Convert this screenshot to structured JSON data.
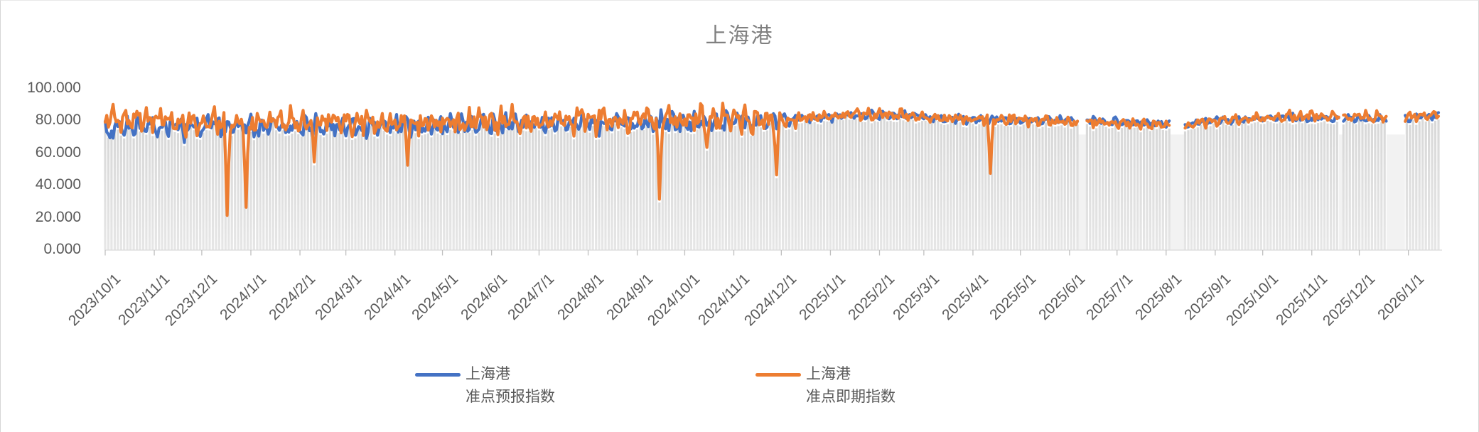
{
  "title": "上海港",
  "legend": {
    "items": [
      {
        "id": "forecast",
        "line1": "上海港",
        "line2": "准点预报指数",
        "color": "#4472C4"
      },
      {
        "id": "spot",
        "line1": "上海港",
        "line2": "准点即期指数",
        "color": "#ED7D31"
      }
    ]
  },
  "y_axis": {
    "tick_labels_top_to_bottom": [
      "100.000",
      "80.000",
      "60.000",
      "40.000",
      "20.000",
      "0.000"
    ]
  },
  "x_axis": {
    "tick_labels": [
      "2023/10/1",
      "2023/11/1",
      "2023/12/1",
      "2024/1/1",
      "2024/2/1",
      "2024/3/1",
      "2024/4/1",
      "2024/5/1",
      "2024/6/1",
      "2024/7/1",
      "2024/8/1",
      "2024/9/1",
      "2024/10/1",
      "2024/11/1",
      "2024/12/1",
      "2025/1/1",
      "2025/2/1",
      "2025/3/1",
      "2025/4/1",
      "2025/5/1",
      "2025/6/1",
      "2025/7/1",
      "2025/8/1",
      "2025/9/1",
      "2025/10/1",
      "2025/11/1",
      "2025/12/1",
      "2026/1/1"
    ]
  },
  "chart_data": {
    "type": "line",
    "title": "上海港",
    "xlabel": "",
    "ylabel": "",
    "ylim": [
      0,
      100
    ],
    "y_ticks": [
      0,
      20,
      40,
      60,
      80,
      100
    ],
    "y_tick_labels": [
      "0.000",
      "20.000",
      "40.000",
      "60.000",
      "80.000",
      "100.000"
    ],
    "x_start": "2023/10/1",
    "x_end": "2026/1/20",
    "frequency": "daily",
    "grid": false,
    "legend_position": "bottom",
    "x_tick_labels": [
      "2023/10/1",
      "2023/11/1",
      "2023/12/1",
      "2024/1/1",
      "2024/2/1",
      "2024/3/1",
      "2024/4/1",
      "2024/5/1",
      "2024/6/1",
      "2024/7/1",
      "2024/8/1",
      "2024/9/1",
      "2024/10/1",
      "2024/11/1",
      "2024/12/1",
      "2025/1/1",
      "2025/2/1",
      "2025/3/1",
      "2025/4/1",
      "2025/5/1",
      "2025/6/1",
      "2025/7/1",
      "2025/8/1",
      "2025/9/1",
      "2025/10/1",
      "2025/11/1",
      "2025/12/1",
      "2026/1/1"
    ],
    "series": [
      {
        "name": "上海港 准点预报指数",
        "color": "#4472C4",
        "typical_range": [
          68,
          88
        ],
        "noise_amplitude_base": 6.3,
        "level_anchors": [
          [
            "2023/10/1",
            73.5
          ],
          [
            "2023/10/16",
            77
          ],
          [
            "2023/12/1",
            76
          ],
          [
            "2024/2/1",
            76
          ],
          [
            "2024/4/1",
            76.5
          ],
          [
            "2024/7/1",
            77.5
          ],
          [
            "2024/9/1",
            78.5
          ],
          [
            "2024/11/1",
            79
          ],
          [
            "2024/12/10",
            80.5
          ],
          [
            "2025/1/10",
            82.5
          ],
          [
            "2025/2/15",
            82.5
          ],
          [
            "2025/3/15",
            81
          ],
          [
            "2025/4/15",
            80
          ],
          [
            "2025/6/1",
            79.5
          ],
          [
            "2025/7/15",
            78.5
          ],
          [
            "2025/8/10",
            77.5
          ],
          [
            "2025/9/10",
            80
          ],
          [
            "2025/10/15",
            81.5
          ],
          [
            "2025/11/15",
            81
          ],
          [
            "2025/12/15",
            81
          ],
          [
            "2026/1/20",
            82.5
          ]
        ],
        "dips": [
          [
            "2023/10/4",
            69
          ],
          [
            "2023/11/20",
            66
          ]
        ]
      },
      {
        "name": "上海港 准点即期指数",
        "color": "#ED7D31",
        "typical_range": [
          66,
          90
        ],
        "noise_amplitude_base": 7.8,
        "level_anchors": [
          [
            "2023/10/1",
            81
          ],
          [
            "2023/12/1",
            79
          ],
          [
            "2024/2/1",
            78.5
          ],
          [
            "2024/4/1",
            78.5
          ],
          [
            "2024/7/1",
            79.5
          ],
          [
            "2024/9/1",
            80.5
          ],
          [
            "2024/11/1",
            80
          ],
          [
            "2024/12/10",
            81
          ],
          [
            "2025/1/10",
            83
          ],
          [
            "2025/2/15",
            83
          ],
          [
            "2025/3/15",
            81
          ],
          [
            "2025/4/15",
            80.5
          ],
          [
            "2025/6/1",
            79
          ],
          [
            "2025/7/15",
            77.5
          ],
          [
            "2025/8/10",
            76.5
          ],
          [
            "2025/9/10",
            80
          ],
          [
            "2025/10/15",
            82
          ],
          [
            "2025/11/15",
            82
          ],
          [
            "2025/12/15",
            82
          ],
          [
            "2026/1/20",
            83
          ]
        ],
        "dips": [
          [
            "2023/12/17",
            21
          ],
          [
            "2023/12/29",
            26
          ],
          [
            "2024/2/10",
            54
          ],
          [
            "2024/4/9",
            52
          ],
          [
            "2024/9/15",
            31
          ],
          [
            "2024/10/15",
            63
          ],
          [
            "2024/11/28",
            46
          ],
          [
            "2025/4/12",
            47
          ]
        ]
      }
    ],
    "amplitude_anchors": [
      [
        "2023/10/1",
        1
      ],
      [
        "2024/11/20",
        1
      ],
      [
        "2024/12/20",
        0.42
      ],
      [
        "2026/1/20",
        0.38
      ]
    ],
    "data_gaps": [
      [
        "2025/6/7",
        "2025/6/11"
      ],
      [
        "2025/8/4",
        "2025/8/12"
      ],
      [
        "2025/11/19",
        "2025/11/20"
      ],
      [
        "2025/12/19",
        "2025/12/29"
      ]
    ],
    "background_bars": {
      "color_top": "#D8D8D8",
      "color_bottom": "#E6E6E6",
      "cadence_days": 2,
      "height_rule": "min(series) - 2",
      "gap_fill": "#F2F2F2"
    }
  }
}
